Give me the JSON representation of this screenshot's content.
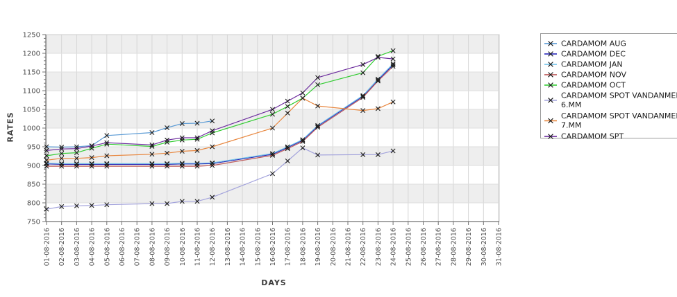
{
  "chart_data": {
    "type": "line",
    "title": "",
    "xlabel": "DAYS",
    "ylabel": "RATES",
    "ylim": [
      750,
      1250
    ],
    "y_ticks": [
      750,
      800,
      850,
      900,
      950,
      1000,
      1050,
      1100,
      1150,
      1200,
      1250
    ],
    "y_minor_tick_step": 10,
    "grid": true,
    "band_fill_color": "#eeeeee",
    "grid_color": "#d6d6d6",
    "axis_color": "#707070",
    "tick_label_color": "#4d4d4d",
    "marker": "x",
    "marker_color": "#1a1a1a",
    "legend_position": "right",
    "x_categories": [
      "01-08-2016",
      "02-08-2016",
      "03-08-2016",
      "04-08-2016",
      "05-08-2016",
      "06-08-2016",
      "07-08-2016",
      "08-08-2016",
      "09-08-2016",
      "10-08-2016",
      "11-08-2016",
      "12-08-2016",
      "13-08-2016",
      "14-08-2016",
      "15-08-2016",
      "16-08-2016",
      "17-08-2016",
      "18-08-2016",
      "19-08-2016",
      "20-08-2016",
      "21-08-2016",
      "22-08-2016",
      "23-08-2016",
      "24-08-2016",
      "25-08-2016",
      "26-08-2016",
      "27-08-2016",
      "28-08-2016",
      "29-08-2016",
      "30-08-2016",
      "31-08-2016"
    ],
    "series": [
      {
        "name": "CARDAMOM AUG",
        "legend_lines": [
          "CARDAMOM AUG"
        ],
        "color": "#5b9bd5",
        "days": [
          1,
          2,
          3,
          4,
          5,
          8,
          9,
          10,
          11,
          12
        ],
        "values": [
          950,
          949,
          950,
          953,
          980,
          988,
          1001,
          1012,
          1013,
          1019
        ]
      },
      {
        "name": "CARDAMOM DEC",
        "legend_lines": [
          "CARDAMOM DEC"
        ],
        "color": "#2929b8",
        "days": [
          1,
          2,
          3,
          4,
          5,
          8,
          9,
          10,
          11,
          12,
          16,
          17,
          18,
          19,
          22,
          23,
          24
        ],
        "values": [
          904,
          903,
          903,
          903,
          903,
          903,
          903,
          904,
          904,
          905,
          930,
          948,
          967,
          1005,
          1085,
          1128,
          1169
        ]
      },
      {
        "name": "CARDAMOM JAN",
        "legend_lines": [
          "CARDAMOM JAN"
        ],
        "color": "#6fc0e8",
        "days": [
          1,
          2,
          3,
          4,
          5,
          8,
          9,
          10,
          11,
          12,
          16,
          17,
          18,
          19,
          22,
          23,
          24
        ],
        "values": [
          906,
          905,
          905,
          905,
          905,
          905,
          905,
          906,
          906,
          907,
          932,
          950,
          969,
          1007,
          1087,
          1131,
          1172
        ]
      },
      {
        "name": "CARDAMOM NOV",
        "legend_lines": [
          "CARDAMOM NOV"
        ],
        "color": "#bd5d5d",
        "days": [
          1,
          2,
          3,
          4,
          5,
          8,
          9,
          10,
          11,
          12,
          16,
          17,
          18,
          19,
          22,
          23,
          24
        ],
        "values": [
          898,
          898,
          898,
          898,
          898,
          898,
          898,
          898,
          898,
          900,
          927,
          945,
          964,
          1002,
          1082,
          1126,
          1165
        ]
      },
      {
        "name": "CARDAMOM OCT",
        "legend_lines": [
          "CARDAMOM OCT"
        ],
        "color": "#33cc33",
        "days": [
          1,
          2,
          3,
          4,
          5,
          8,
          9,
          10,
          11,
          12,
          16,
          17,
          18,
          19,
          22,
          23,
          24
        ],
        "values": [
          926,
          932,
          934,
          946,
          957,
          951,
          962,
          968,
          970,
          987,
          1037,
          1058,
          1080,
          1116,
          1148,
          1192,
          1207
        ]
      },
      {
        "name": "CARDAMOM SPOT VANDANMEDU 6.MM",
        "legend_lines": [
          "CARDAMOM SPOT VANDANMEDU",
          "6.MM"
        ],
        "color": "#a3a3dc",
        "days": [
          1,
          2,
          3,
          4,
          5,
          8,
          9,
          10,
          11,
          12,
          16,
          17,
          18,
          19,
          22,
          23,
          24
        ],
        "values": [
          783,
          790,
          792,
          793,
          795,
          798,
          798,
          804,
          804,
          815,
          878,
          912,
          947,
          928,
          929,
          929,
          939
        ]
      },
      {
        "name": "CARDAMOM SPOT VANDANMEDU 7.MM",
        "legend_lines": [
          "CARDAMOM SPOT VANDANMEDU",
          "7.MM"
        ],
        "color": "#e8873f",
        "days": [
          1,
          2,
          3,
          4,
          5,
          8,
          9,
          10,
          11,
          12,
          16,
          17,
          18,
          19,
          22,
          23,
          24
        ],
        "values": [
          914,
          919,
          919,
          921,
          926,
          930,
          933,
          938,
          940,
          950,
          1000,
          1040,
          1080,
          1059,
          1047,
          1052,
          1070
        ]
      },
      {
        "name": "CARDAMOM SPT",
        "legend_lines": [
          "CARDAMOM SPT"
        ],
        "color": "#6d2e9e",
        "days": [
          1,
          2,
          3,
          4,
          5,
          8,
          9,
          10,
          11,
          12,
          16,
          17,
          18,
          19,
          22,
          23,
          24
        ],
        "values": [
          940,
          944,
          945,
          952,
          961,
          955,
          968,
          974,
          974,
          993,
          1050,
          1072,
          1094,
          1135,
          1170,
          1189,
          1185
        ]
      }
    ]
  }
}
